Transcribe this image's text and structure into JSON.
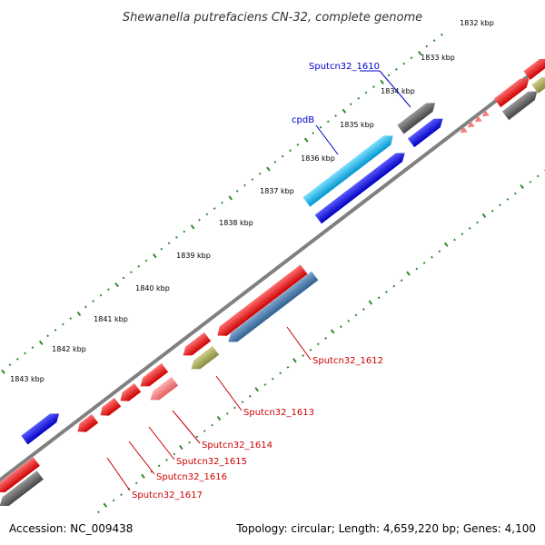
{
  "title": "Shewanella putrefaciens CN-32, complete genome",
  "footer": {
    "accession": "Accession: NC_009438",
    "summary": "Topology: circular; Length: 4,659,220 bp; Genes: 4,100"
  },
  "kbp_ticks": [
    "1832 kbp",
    "1833 kbp",
    "1834 kbp",
    "1835 kbp",
    "1836 kbp",
    "1837 kbp",
    "1838 kbp",
    "1839 kbp",
    "1840 kbp",
    "1841 kbp",
    "1842 kbp",
    "1843 kbp"
  ],
  "gene_labels_forward": [
    "Sputcn32_1610",
    "cpdB"
  ],
  "gene_labels_reverse": [
    "Sputcn32_1612",
    "Sputcn32_1613",
    "Sputcn32_1614",
    "Sputcn32_1615",
    "Sputcn32_1616",
    "Sputcn32_1617"
  ],
  "colors": {
    "backbone": "#808080",
    "tick": "#2e8b2e",
    "red_gene": "#ff0000",
    "blue_gene": "#0000e6",
    "cyan_gene": "#00b4f0",
    "gray_gene": "#666666",
    "steelblue_gene": "#4a7fb5",
    "olive_gene": "#a6a65a",
    "pink_gene": "#f08080",
    "forward_label": "#0000cc",
    "reverse_label": "#cc0000"
  }
}
